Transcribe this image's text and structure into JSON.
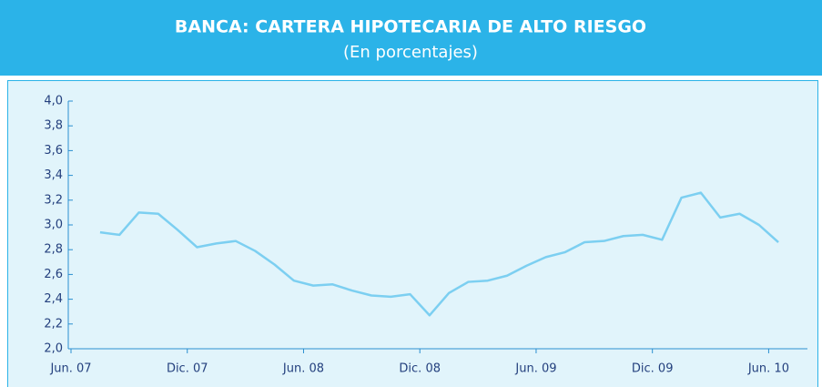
{
  "chart_data": {
    "type": "line",
    "title": "BANCA: CARTERA HIPOTECARIA DE ALTO RIESGO",
    "subtitle": "(En porcentajes)",
    "x": [
      1.5,
      2.5,
      3.5,
      4.5,
      5.5,
      6.5,
      7.5,
      8.5,
      9.5,
      10.5,
      11.5,
      12.5,
      13.5,
      14.5,
      15.5,
      16.5,
      17.5,
      18.5,
      19.5,
      20.5,
      21.5,
      22.5,
      23.5,
      24.5,
      25.5,
      26.5,
      27.5,
      28.5,
      29.5,
      30.5,
      31.5,
      32.5,
      33.5,
      34.5,
      35.5,
      36.5
    ],
    "series": [
      {
        "name": "Cartera hipotecaria de alto riesgo",
        "color": "#7ccff1",
        "values": [
          2.94,
          2.92,
          3.1,
          3.09,
          2.96,
          2.82,
          2.85,
          2.87,
          2.79,
          2.68,
          2.55,
          2.51,
          2.52,
          2.47,
          2.43,
          2.42,
          2.44,
          2.27,
          2.45,
          2.54,
          2.55,
          2.59,
          2.67,
          2.74,
          2.78,
          2.86,
          2.87,
          2.91,
          2.92,
          2.88,
          3.22,
          3.26,
          3.06,
          3.09,
          3.0,
          2.86
        ]
      }
    ],
    "xlim": [
      0,
      38
    ],
    "xticks": [
      {
        "value": 0,
        "label": "Jun. 07"
      },
      {
        "value": 6,
        "label": "Dic. 07"
      },
      {
        "value": 12,
        "label": "Jun. 08"
      },
      {
        "value": 18,
        "label": "Dic. 08"
      },
      {
        "value": 24,
        "label": "Jun. 09"
      },
      {
        "value": 30,
        "label": "Dic. 09"
      },
      {
        "value": 36,
        "label": "Jun. 10"
      }
    ],
    "ylim": [
      2.0,
      4.0
    ],
    "yticks": [
      {
        "value": 2.0,
        "label": "2,0"
      },
      {
        "value": 2.2,
        "label": "2,2"
      },
      {
        "value": 2.4,
        "label": "2,4"
      },
      {
        "value": 2.6,
        "label": "2,6"
      },
      {
        "value": 2.8,
        "label": "2,8"
      },
      {
        "value": 3.0,
        "label": "3,0"
      },
      {
        "value": 3.2,
        "label": "3,2"
      },
      {
        "value": 3.4,
        "label": "3,4"
      },
      {
        "value": 3.6,
        "label": "3,6"
      },
      {
        "value": 3.8,
        "label": "3,8"
      },
      {
        "value": 4.0,
        "label": "4,0"
      }
    ],
    "grid": false
  }
}
